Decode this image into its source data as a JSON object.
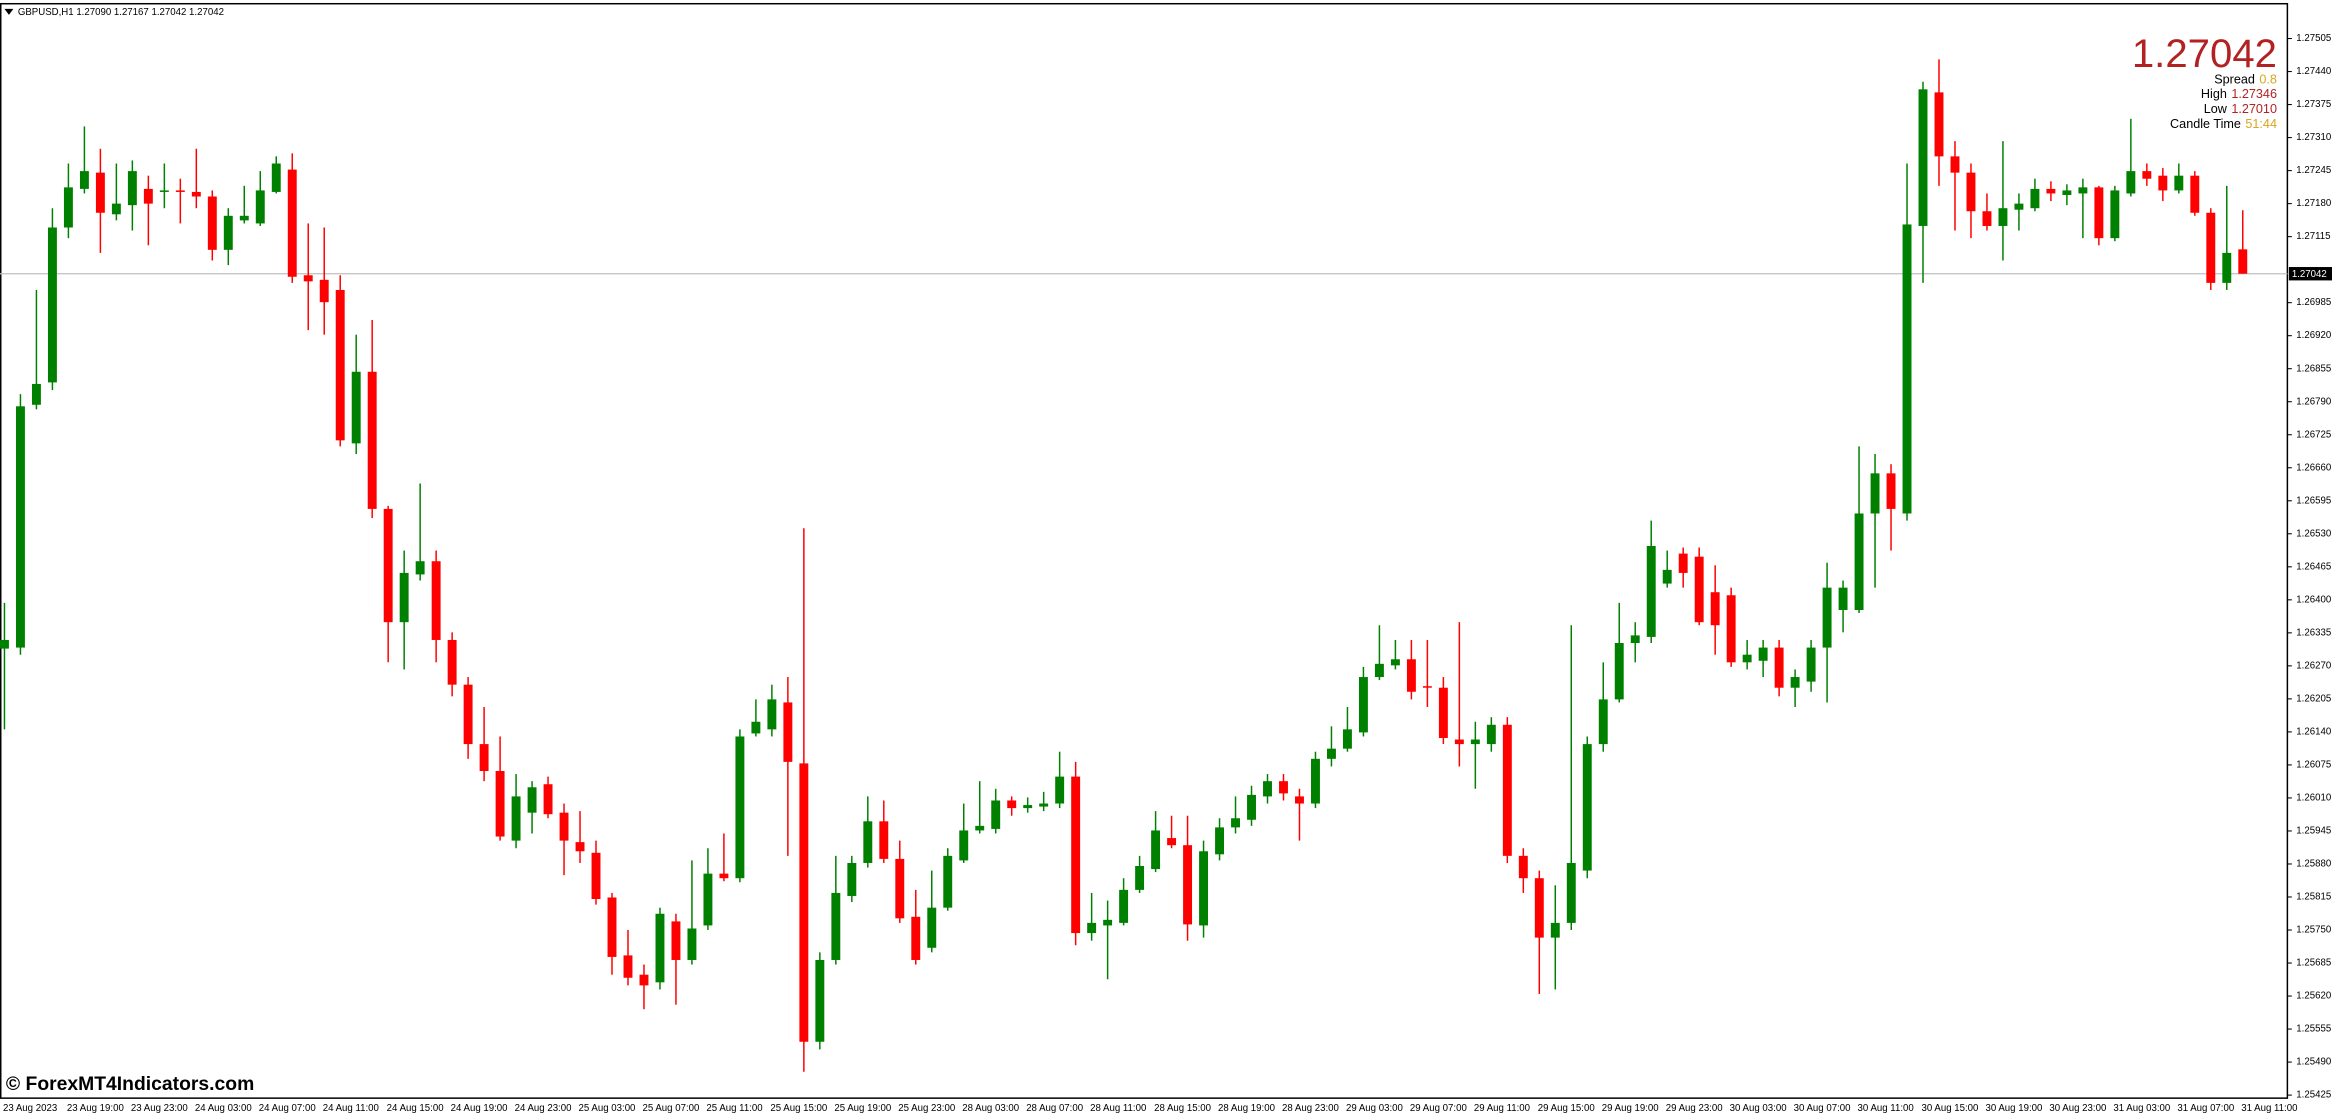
{
  "header": "GBPUSD,H1  1.27090 1.27167 1.27042 1.27042",
  "watermark": "© ForexMT4Indicators.com",
  "info_panel": {
    "rows": [
      {
        "label": "Spread",
        "value": "0.8"
      },
      {
        "label": "High",
        "value": "1.27346"
      },
      {
        "label": "Low",
        "value": "1.27010"
      },
      {
        "label": "Candle Time",
        "value": "51:44"
      }
    ]
  },
  "chart_data": {
    "type": "candlestick",
    "up_color": "#008000",
    "down_color": "#ff0000",
    "ylim": [
      1.25419,
      1.27575
    ],
    "yticks": [
      1.27505,
      {
        "value": 1.2744,
        "label": "1.27440"
      },
      1.27375,
      {
        "value": 1.2731,
        "label": "1.27310"
      },
      1.27245,
      {
        "value": 1.2718,
        "label": "1.27180"
      },
      1.27115,
      1.26985,
      {
        "value": 1.2692,
        "label": "1.26920"
      },
      1.26855,
      {
        "value": 1.2679,
        "label": "1.26790"
      },
      1.26725,
      {
        "value": 1.2666,
        "label": "1.26660"
      },
      1.26595,
      {
        "value": 1.2653,
        "label": "1.26530"
      },
      1.26465,
      {
        "value": 1.264,
        "label": "1.26400"
      },
      1.26335,
      {
        "value": 1.2627,
        "label": "1.26270"
      },
      1.26205,
      {
        "value": 1.2614,
        "label": "1.26140"
      },
      1.26075,
      {
        "value": 1.2601,
        "label": "1.26010"
      },
      1.25945,
      {
        "value": 1.2588,
        "label": "1.25880"
      },
      1.25815,
      {
        "value": 1.2575,
        "label": "1.25750"
      },
      1.25685,
      {
        "value": 1.2562,
        "label": "1.25620"
      },
      1.25555,
      {
        "value": 1.2549,
        "label": "1.25490"
      },
      1.25425
    ],
    "current_price": {
      "value": 1.27042,
      "label": "1.27042"
    },
    "categories": [
      "23 Aug 2023",
      null,
      null,
      null,
      "23 Aug 19:00",
      null,
      null,
      null,
      "23 Aug 23:00",
      null,
      null,
      null,
      "24 Aug 03:00",
      null,
      null,
      null,
      "24 Aug 07:00",
      null,
      null,
      null,
      "24 Aug 11:00",
      null,
      null,
      null,
      "24 Aug 15:00",
      null,
      null,
      null,
      "24 Aug 19:00",
      null,
      null,
      null,
      "24 Aug 23:00",
      null,
      null,
      null,
      "25 Aug 03:00",
      null,
      null,
      null,
      "25 Aug 07:00",
      null,
      null,
      null,
      "25 Aug 11:00",
      null,
      null,
      null,
      "25 Aug 15:00",
      null,
      null,
      null,
      "25 Aug 19:00",
      null,
      null,
      null,
      "25 Aug 23:00",
      null,
      null,
      null,
      "28 Aug 03:00",
      null,
      null,
      null,
      "28 Aug 07:00",
      null,
      null,
      null,
      "28 Aug 11:00",
      null,
      null,
      null,
      "28 Aug 15:00",
      null,
      null,
      null,
      "28 Aug 19:00",
      null,
      null,
      null,
      "28 Aug 23:00",
      null,
      null,
      null,
      "29 Aug 03:00",
      null,
      null,
      null,
      "29 Aug 07:00",
      null,
      null,
      null,
      "29 Aug 11:00",
      null,
      null,
      null,
      "29 Aug 15:00",
      null,
      null,
      null,
      "29 Aug 19:00",
      null,
      null,
      null,
      "29 Aug 23:00",
      null,
      null,
      null,
      "30 Aug 03:00",
      null,
      null,
      null,
      "30 Aug 07:00",
      null,
      null,
      null,
      "30 Aug 11:00",
      null,
      null,
      null,
      "30 Aug 15:00",
      null,
      null,
      null,
      "30 Aug 19:00",
      null,
      null,
      null,
      "30 Aug 23:00",
      null,
      null,
      null,
      "31 Aug 03:00",
      null,
      null,
      null,
      "31 Aug 07:00",
      null,
      null,
      null,
      "31 Aug 11:00"
    ],
    "ohlc": [
      [
        1.26304,
        1.26394,
        1.26145,
        1.26321
      ],
      [
        1.26306,
        1.26805,
        1.26292,
        1.26781
      ],
      [
        1.26784,
        1.2701,
        1.26775,
        1.26825
      ],
      [
        1.26828,
        1.27171,
        1.26813,
        1.27133
      ],
      [
        1.27133,
        1.27259,
        1.27112,
        1.27212
      ],
      [
        1.27209,
        1.27332,
        1.272,
        1.27244
      ],
      [
        1.27241,
        1.27288,
        1.27083,
        1.27162
      ],
      [
        1.27159,
        1.27259,
        1.27147,
        1.2718
      ],
      [
        1.27177,
        1.27265,
        1.27127,
        1.27244
      ],
      [
        1.27209,
        1.27235,
        1.27098,
        1.2718
      ],
      [
        1.27203,
        1.27259,
        1.27171,
        1.27206
      ],
      [
        1.27206,
        1.27229,
        1.27141,
        1.27203
      ],
      [
        1.27203,
        1.27288,
        1.27171,
        1.27194
      ],
      [
        1.27194,
        1.27206,
        1.27068,
        1.27089
      ],
      [
        1.27089,
        1.27171,
        1.27059,
        1.27156
      ],
      [
        1.27147,
        1.27215,
        1.27141,
        1.27156
      ],
      [
        1.27141,
        1.27244,
        1.27136,
        1.27206
      ],
      [
        1.27203,
        1.27273,
        1.272,
        1.27259
      ],
      [
        1.27247,
        1.27279,
        1.27024,
        1.27036
      ],
      [
        1.27039,
        1.27141,
        1.26931,
        1.27027
      ],
      [
        1.2703,
        1.27133,
        1.26922,
        1.26986
      ],
      [
        1.2701,
        1.27039,
        1.26702,
        1.26714
      ],
      [
        1.26708,
        1.26922,
        1.26687,
        1.26849
      ],
      [
        1.26849,
        1.26951,
        1.26561,
        1.26579
      ],
      [
        1.26579,
        1.26585,
        1.26277,
        1.26356
      ],
      [
        1.26356,
        1.26497,
        1.26263,
        1.26453
      ],
      [
        1.2645,
        1.26629,
        1.26438,
        1.26476
      ],
      [
        1.26476,
        1.26497,
        1.26277,
        1.26321
      ],
      [
        1.26321,
        1.26336,
        1.2621,
        1.26233
      ],
      [
        1.26233,
        1.26248,
        1.26087,
        1.26116
      ],
      [
        1.26116,
        1.26189,
        1.26043,
        1.26063
      ],
      [
        1.26063,
        1.26131,
        1.25926,
        1.25934
      ],
      [
        1.25926,
        1.26057,
        1.25911,
        1.26013
      ],
      [
        1.25981,
        1.26043,
        1.2594,
        1.26031
      ],
      [
        1.26037,
        1.26052,
        1.2597,
        1.25978
      ],
      [
        1.25981,
        1.25999,
        1.25858,
        1.25926
      ],
      [
        1.25923,
        1.25984,
        1.25882,
        1.25905
      ],
      [
        1.25902,
        1.25926,
        1.258,
        1.25811
      ],
      [
        1.25814,
        1.25823,
        1.25662,
        1.25697
      ],
      [
        1.257,
        1.2575,
        1.25641,
        1.25656
      ],
      [
        1.25662,
        1.25682,
        1.25594,
        1.25641
      ],
      [
        1.25647,
        1.25794,
        1.25633,
        1.25782
      ],
      [
        1.25767,
        1.25782,
        1.25603,
        1.25691
      ],
      [
        1.25691,
        1.25887,
        1.25682,
        1.25753
      ],
      [
        1.25759,
        1.25911,
        1.2575,
        1.25861
      ],
      [
        1.25861,
        1.2594,
        1.25846,
        1.25852
      ],
      [
        1.25852,
        1.26145,
        1.25844,
        1.26131
      ],
      [
        1.26137,
        1.26204,
        1.26131,
        1.2616
      ],
      [
        1.26145,
        1.26233,
        1.26131,
        1.26204
      ],
      [
        1.26198,
        1.26248,
        1.25896,
        1.26081
      ],
      [
        1.26078,
        1.26541,
        1.25471,
        1.2553
      ],
      [
        1.2553,
        1.25706,
        1.25515,
        1.25691
      ],
      [
        1.25691,
        1.25896,
        1.25682,
        1.25823
      ],
      [
        1.25817,
        1.25896,
        1.25805,
        1.25882
      ],
      [
        1.25882,
        1.26013,
        1.25873,
        1.25964
      ],
      [
        1.25964,
        1.26005,
        1.25882,
        1.2589
      ],
      [
        1.2589,
        1.25926,
        1.25764,
        1.25773
      ],
      [
        1.25776,
        1.25829,
        1.25682,
        1.25691
      ],
      [
        1.25715,
        1.25867,
        1.25706,
        1.25794
      ],
      [
        1.25794,
        1.25911,
        1.25788,
        1.25896
      ],
      [
        1.25887,
        1.25999,
        1.25882,
        1.25946
      ],
      [
        1.25946,
        1.26043,
        1.2594,
        1.25955
      ],
      [
        1.25949,
        1.26028,
        1.2594,
        1.26005
      ],
      [
        1.26005,
        1.26013,
        1.25975,
        1.2599
      ],
      [
        1.2599,
        1.26011,
        1.25981,
        1.25996
      ],
      [
        1.25993,
        1.26022,
        1.25984,
        1.25999
      ],
      [
        1.25999,
        1.26101,
        1.2599,
        1.26052
      ],
      [
        1.26052,
        1.26081,
        1.2572,
        1.25744
      ],
      [
        1.25744,
        1.25823,
        1.25729,
        1.25764
      ],
      [
        1.25759,
        1.25808,
        1.25653,
        1.2577
      ],
      [
        1.25764,
        1.25852,
        1.25759,
        1.25829
      ],
      [
        1.25829,
        1.25896,
        1.25823,
        1.25876
      ],
      [
        1.2587,
        1.25984,
        1.25864,
        1.25946
      ],
      [
        1.25931,
        1.25975,
        1.25911,
        1.25917
      ],
      [
        1.25917,
        1.25975,
        1.25729,
        1.25761
      ],
      [
        1.25759,
        1.25926,
        1.25735,
        1.25905
      ],
      [
        1.25899,
        1.2597,
        1.25887,
        1.25952
      ],
      [
        1.25952,
        1.26013,
        1.2594,
        1.2597
      ],
      [
        1.25967,
        1.26034,
        1.25955,
        1.26016
      ],
      [
        1.26013,
        1.26057,
        1.25999,
        1.26043
      ],
      [
        1.26043,
        1.26057,
        1.26005,
        1.26019
      ],
      [
        1.26013,
        1.26028,
        1.25926,
        1.25999
      ],
      [
        1.25999,
        1.26101,
        1.2599,
        1.26087
      ],
      [
        1.26087,
        1.26151,
        1.26072,
        1.26107
      ],
      [
        1.26107,
        1.26189,
        1.26101,
        1.26145
      ],
      [
        1.26139,
        1.26268,
        1.26131,
        1.26248
      ],
      [
        1.26248,
        1.2635,
        1.26242,
        1.26274
      ],
      [
        1.26271,
        1.26321,
        1.26263,
        1.26283
      ],
      [
        1.26283,
        1.26321,
        1.26204,
        1.26219
      ],
      [
        1.2623,
        1.26321,
        1.26189,
        1.26227
      ],
      [
        1.26227,
        1.26248,
        1.26116,
        1.26128
      ],
      [
        1.26125,
        1.26356,
        1.26072,
        1.26116
      ],
      [
        1.26116,
        1.2616,
        1.26028,
        1.26125
      ],
      [
        1.26116,
        1.26169,
        1.26101,
        1.26154
      ],
      [
        1.26154,
        1.26169,
        1.25882,
        1.25896
      ],
      [
        1.25896,
        1.25911,
        1.25823,
        1.25852
      ],
      [
        1.25852,
        1.25867,
        1.25624,
        1.25735
      ],
      [
        1.25735,
        1.25838,
        1.25633,
        1.25764
      ],
      [
        1.25764,
        1.2635,
        1.2575,
        1.25882
      ],
      [
        1.25867,
        1.26131,
        1.25852,
        1.26116
      ],
      [
        1.26116,
        1.26277,
        1.26101,
        1.26204
      ],
      [
        1.26204,
        1.26394,
        1.26198,
        1.26315
      ],
      [
        1.26315,
        1.26356,
        1.26277,
        1.2633
      ],
      [
        1.26327,
        1.26556,
        1.26315,
        1.26506
      ],
      [
        1.26432,
        1.26497,
        1.26424,
        1.26459
      ],
      [
        1.26491,
        1.26503,
        1.26424,
        1.26453
      ],
      [
        1.26485,
        1.26503,
        1.2635,
        1.26356
      ],
      [
        1.26415,
        1.26468,
        1.26292,
        1.2635
      ],
      [
        1.26409,
        1.26424,
        1.26268,
        1.26277
      ],
      [
        1.26277,
        1.26321,
        1.26263,
        1.26292
      ],
      [
        1.2628,
        1.26321,
        1.26248,
        1.26306
      ],
      [
        1.26306,
        1.26321,
        1.2621,
        1.26227
      ],
      [
        1.26227,
        1.26263,
        1.26189,
        1.26248
      ],
      [
        1.26239,
        1.26321,
        1.26219,
        1.26306
      ],
      [
        1.26306,
        1.26473,
        1.26198,
        1.26424
      ],
      [
        1.2638,
        1.26438,
        1.26336,
        1.26424
      ],
      [
        1.2638,
        1.26702,
        1.26374,
        1.2657
      ],
      [
        1.2657,
        1.26687,
        1.26424,
        1.26649
      ],
      [
        1.26649,
        1.26667,
        1.26497,
        1.26579
      ],
      [
        1.2657,
        1.27259,
        1.26556,
        1.27139
      ],
      [
        1.27136,
        1.2742,
        1.27024,
        1.27405
      ],
      [
        1.27399,
        1.27464,
        1.27215,
        1.27273
      ],
      [
        1.27273,
        1.27303,
        1.27127,
        1.27241
      ],
      [
        1.27241,
        1.27259,
        1.27112,
        1.27165
      ],
      [
        1.27165,
        1.272,
        1.27127,
        1.27136
      ],
      [
        1.27136,
        1.27303,
        1.27068,
        1.27171
      ],
      [
        1.27168,
        1.272,
        1.27127,
        1.2718
      ],
      [
        1.27171,
        1.27229,
        1.27165,
        1.27209
      ],
      [
        1.27209,
        1.27224,
        1.27185,
        1.272
      ],
      [
        1.27197,
        1.27218,
        1.27177,
        1.27206
      ],
      [
        1.272,
        1.27229,
        1.27112,
        1.27212
      ],
      [
        1.27212,
        1.27215,
        1.27098,
        1.27112
      ],
      [
        1.27112,
        1.27215,
        1.27106,
        1.27206
      ],
      [
        1.272,
        1.27347,
        1.27194,
        1.27244
      ],
      [
        1.27244,
        1.27259,
        1.27215,
        1.27229
      ],
      [
        1.27235,
        1.2725,
        1.27185,
        1.27206
      ],
      [
        1.27206,
        1.27259,
        1.272,
        1.27235
      ],
      [
        1.27235,
        1.27244,
        1.27156,
        1.27162
      ],
      [
        1.27162,
        1.27171,
        1.2701,
        1.27024
      ],
      [
        1.27024,
        1.27215,
        1.2701,
        1.27083
      ],
      [
        1.2709,
        1.27167,
        1.27042,
        1.27042
      ]
    ]
  }
}
